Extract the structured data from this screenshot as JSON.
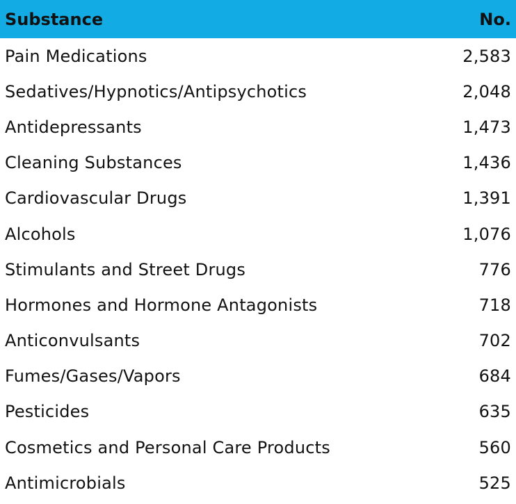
{
  "colors": {
    "header_bg": "#12ABE4",
    "text": "#111111",
    "background": "#FFFFFF"
  },
  "table": {
    "headers": {
      "substance": "Substance",
      "no": "No."
    },
    "rows": [
      {
        "substance": "Pain Medications",
        "no": "2,583"
      },
      {
        "substance": "Sedatives/Hypnotics/Antipsychotics",
        "no": "2,048"
      },
      {
        "substance": "Antidepressants",
        "no": "1,473"
      },
      {
        "substance": "Cleaning Substances",
        "no": "1,436"
      },
      {
        "substance": "Cardiovascular Drugs",
        "no": "1,391"
      },
      {
        "substance": "Alcohols",
        "no": "1,076"
      },
      {
        "substance": "Stimulants and Street Drugs",
        "no": "776"
      },
      {
        "substance": "Hormones and Hormone Antagonists",
        "no": "718"
      },
      {
        "substance": "Anticonvulsants",
        "no": "702"
      },
      {
        "substance": "Fumes/Gases/Vapors",
        "no": "684"
      },
      {
        "substance": "Pesticides",
        "no": "635"
      },
      {
        "substance": "Cosmetics and Personal Care Products",
        "no": "560"
      },
      {
        "substance": "Antimicrobials",
        "no": "525"
      }
    ]
  }
}
